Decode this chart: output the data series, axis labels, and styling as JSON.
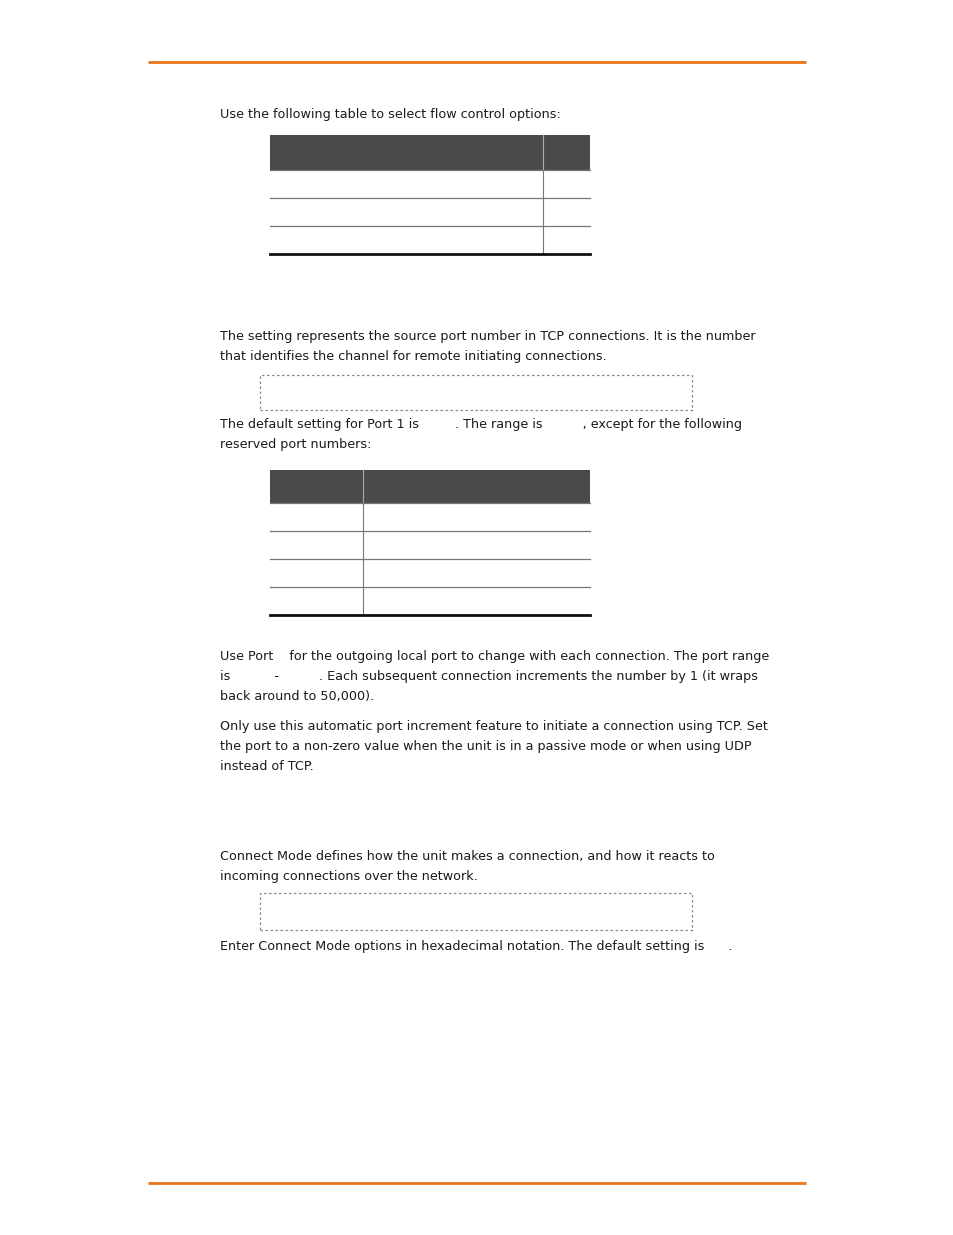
{
  "bg_color": "#ffffff",
  "orange_line_color": "#E8751A",
  "text_color": "#1a1a1a",
  "table_header_bg": "#4a4a4a",
  "body_font_size": 9.2,
  "para1_text": "Use the following table to select flow control options:",
  "para2_line1": "The setting represents the source port number in TCP connections. It is the number",
  "para2_line2": "that identifies the channel for remote initiating connections.",
  "para3_line1": "The default setting for Port 1 is         . The range is          , except for the following",
  "para3_line2": "reserved port numbers:",
  "para4_line1": "Use Port    for the outgoing local port to change with each connection. The port range",
  "para4_line2": "is           -          . Each subsequent connection increments the number by 1 (it wraps",
  "para4_line3": "back around to 50,000).",
  "para5_line1": "Only use this automatic port increment feature to initiate a connection using TCP. Set",
  "para5_line2": "the port to a non-zero value when the unit is in a passive mode or when using UDP",
  "para5_line3": "instead of TCP.",
  "para6_line1": "Connect Mode defines how the unit makes a connection, and how it reacts to",
  "para6_line2": "incoming connections over the network.",
  "para7_text": "Enter Connect Mode options in hexadecimal notation. The default setting is      ."
}
